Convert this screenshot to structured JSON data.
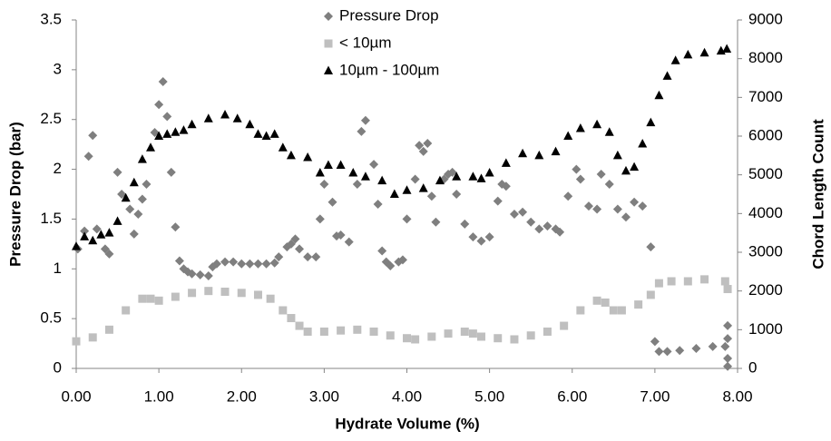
{
  "chart_data": {
    "type": "scatter",
    "xlabel": "Hydrate Volume (%)",
    "ylabel": "Pressure Drop (bar)",
    "y2label": "Chord Length Count",
    "xlim": [
      0,
      8
    ],
    "ylim": [
      0,
      3.5
    ],
    "y2lim": [
      0,
      9000
    ],
    "xticks": [
      {
        "value": 0,
        "label": "0.00"
      },
      {
        "value": 1,
        "label": "1.00"
      },
      {
        "value": 2,
        "label": "2.00"
      },
      {
        "value": 3,
        "label": "3.00"
      },
      {
        "value": 4,
        "label": "4.00"
      },
      {
        "value": 5,
        "label": "5.00"
      },
      {
        "value": 6,
        "label": "6.00"
      },
      {
        "value": 7,
        "label": "7.00"
      },
      {
        "value": 8,
        "label": "8.00"
      }
    ],
    "yticks": [
      0,
      0.5,
      1,
      1.5,
      2,
      2.5,
      3,
      3.5
    ],
    "y2ticks": [
      0,
      1000,
      2000,
      3000,
      4000,
      5000,
      6000,
      7000,
      8000,
      9000
    ],
    "legend": "top-center",
    "grid": false,
    "series": [
      {
        "name": "Pressure Drop",
        "color": "#7f7f7f",
        "marker": "diamond",
        "x": [
          0.02,
          0.1,
          0.15,
          0.2,
          0.25,
          0.35,
          0.4,
          0.5,
          0.55,
          0.65,
          0.7,
          0.75,
          0.8,
          0.85,
          0.95,
          1.0,
          1.05,
          1.1,
          1.15,
          1.2,
          1.25,
          1.3,
          1.35,
          1.4,
          1.5,
          1.6,
          1.65,
          1.7,
          1.8,
          1.9,
          2.0,
          2.1,
          2.2,
          2.3,
          2.4,
          2.45,
          2.55,
          2.6,
          2.65,
          2.7,
          2.8,
          2.9,
          2.95,
          3.0,
          3.1,
          3.15,
          3.2,
          3.3,
          3.4,
          3.45,
          3.5,
          3.6,
          3.65,
          3.7,
          3.75,
          3.8,
          3.9,
          3.95,
          4.0,
          4.1,
          4.15,
          4.2,
          4.25,
          4.3,
          4.35,
          4.45,
          4.5,
          4.55,
          4.6,
          4.7,
          4.8,
          4.9,
          5.0,
          5.1,
          5.15,
          5.2,
          5.3,
          5.4,
          5.5,
          5.6,
          5.7,
          5.8,
          5.85,
          5.95,
          6.05,
          6.1,
          6.2,
          6.3,
          6.35,
          6.45,
          6.55,
          6.65,
          6.75,
          6.85,
          6.95,
          7.0,
          7.05,
          7.15,
          7.3,
          7.5,
          7.7,
          7.85,
          7.88,
          7.88,
          7.88,
          7.88
        ],
        "values": [
          1.2,
          1.38,
          2.13,
          2.34,
          1.4,
          1.2,
          1.15,
          1.97,
          1.75,
          1.6,
          1.35,
          1.55,
          1.7,
          1.85,
          2.37,
          2.65,
          2.88,
          2.53,
          1.97,
          1.42,
          1.08,
          1.0,
          0.97,
          0.95,
          0.94,
          0.93,
          1.02,
          1.05,
          1.07,
          1.07,
          1.05,
          1.05,
          1.05,
          1.05,
          1.06,
          1.12,
          1.22,
          1.25,
          1.3,
          1.2,
          1.12,
          1.12,
          1.5,
          1.85,
          1.67,
          1.33,
          1.34,
          1.27,
          1.85,
          2.38,
          2.49,
          2.05,
          1.65,
          1.18,
          1.07,
          1.03,
          1.07,
          1.09,
          1.5,
          1.9,
          2.24,
          2.18,
          2.26,
          1.73,
          1.47,
          1.9,
          1.95,
          1.97,
          1.75,
          1.45,
          1.32,
          1.28,
          1.32,
          1.68,
          1.85,
          1.83,
          1.55,
          1.57,
          1.47,
          1.4,
          1.43,
          1.4,
          1.37,
          1.73,
          2.0,
          1.9,
          1.63,
          1.6,
          1.95,
          1.85,
          1.6,
          1.52,
          1.67,
          1.63,
          1.22,
          0.27,
          0.17,
          0.17,
          0.18,
          0.2,
          0.22,
          0.22,
          0.43,
          0.3,
          0.1,
          0.02
        ]
      },
      {
        "name": "< 10µm",
        "color": "#bfbfbf",
        "marker": "square",
        "axis": "y2",
        "x": [
          0,
          0.2,
          0.4,
          0.6,
          0.8,
          0.9,
          1.0,
          1.2,
          1.4,
          1.6,
          1.8,
          2.0,
          2.2,
          2.35,
          2.5,
          2.6,
          2.7,
          2.8,
          3.0,
          3.2,
          3.4,
          3.6,
          3.8,
          4.0,
          4.1,
          4.3,
          4.5,
          4.7,
          4.8,
          4.9,
          5.1,
          5.3,
          5.5,
          5.7,
          5.9,
          6.1,
          6.3,
          6.4,
          6.5,
          6.6,
          6.8,
          6.95,
          7.05,
          7.2,
          7.4,
          7.6,
          7.85,
          7.88
        ],
        "values": [
          700,
          800,
          1000,
          1500,
          1800,
          1800,
          1750,
          1850,
          1950,
          2000,
          1980,
          1950,
          1900,
          1800,
          1500,
          1300,
          1100,
          950,
          950,
          980,
          1000,
          950,
          850,
          780,
          750,
          820,
          900,
          950,
          900,
          820,
          780,
          750,
          850,
          950,
          1100,
          1500,
          1750,
          1700,
          1500,
          1500,
          1650,
          1900,
          2200,
          2250,
          2250,
          2300,
          2250,
          2050
        ]
      },
      {
        "name": "10µm - 100µm",
        "color": "#000000",
        "marker": "triangle",
        "axis": "y2",
        "x": [
          0,
          0.1,
          0.2,
          0.3,
          0.4,
          0.5,
          0.6,
          0.7,
          0.8,
          0.9,
          1.0,
          1.1,
          1.2,
          1.3,
          1.4,
          1.6,
          1.8,
          1.95,
          2.1,
          2.2,
          2.3,
          2.4,
          2.5,
          2.6,
          2.8,
          2.95,
          3.05,
          3.2,
          3.35,
          3.5,
          3.7,
          3.85,
          4.0,
          4.2,
          4.4,
          4.6,
          4.8,
          4.9,
          5.0,
          5.2,
          5.4,
          5.6,
          5.8,
          5.95,
          6.1,
          6.3,
          6.45,
          6.55,
          6.65,
          6.75,
          6.85,
          6.95,
          7.05,
          7.15,
          7.25,
          7.4,
          7.6,
          7.8,
          7.87
        ],
        "values": [
          3150,
          3400,
          3300,
          3450,
          3500,
          3800,
          4400,
          4800,
          5400,
          5700,
          6000,
          6050,
          6100,
          6150,
          6300,
          6450,
          6550,
          6450,
          6300,
          6050,
          6000,
          6050,
          5700,
          5500,
          5450,
          5050,
          5250,
          5250,
          5050,
          4950,
          4850,
          4500,
          4600,
          4650,
          4850,
          4950,
          4950,
          4900,
          5050,
          5300,
          5550,
          5500,
          5600,
          6000,
          6200,
          6300,
          6100,
          5500,
          5100,
          5200,
          5800,
          6350,
          7050,
          7550,
          7950,
          8100,
          8150,
          8200,
          8250
        ]
      }
    ]
  }
}
